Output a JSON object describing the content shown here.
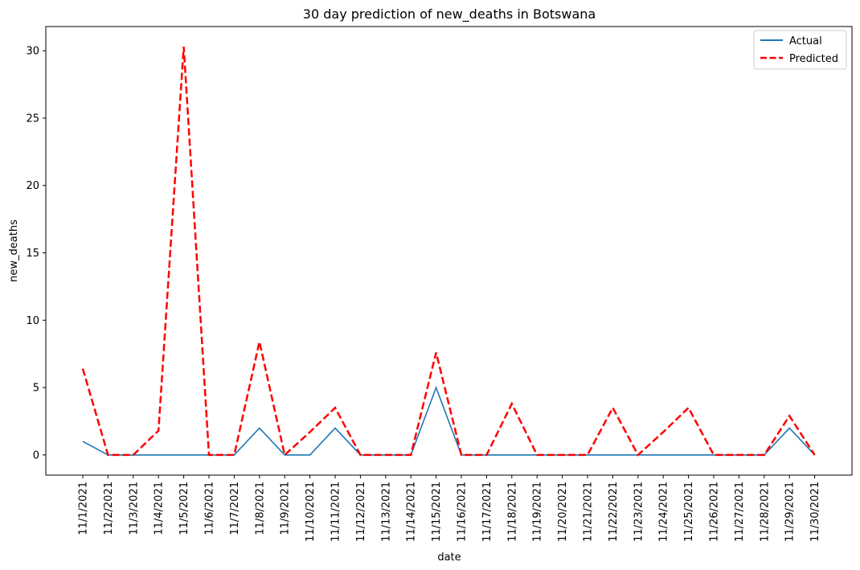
{
  "chart_data": {
    "type": "line",
    "title": "30 day prediction of new_deaths in Botswana",
    "xlabel": "date",
    "ylabel": "new_deaths",
    "x": [
      "11/1/2021",
      "11/2/2021",
      "11/3/2021",
      "11/4/2021",
      "11/5/2021",
      "11/6/2021",
      "11/7/2021",
      "11/8/2021",
      "11/9/2021",
      "11/10/2021",
      "11/11/2021",
      "11/12/2021",
      "11/13/2021",
      "11/14/2021",
      "11/15/2021",
      "11/16/2021",
      "11/17/2021",
      "11/18/2021",
      "11/19/2021",
      "11/20/2021",
      "11/21/2021",
      "11/22/2021",
      "11/23/2021",
      "11/24/2021",
      "11/25/2021",
      "11/26/2021",
      "11/27/2021",
      "11/28/2021",
      "11/29/2021",
      "11/30/2021"
    ],
    "ylim": [
      -1.5,
      31.8
    ],
    "yticks": [
      0,
      5,
      10,
      15,
      20,
      25,
      30
    ],
    "grid": false,
    "legend_position": "top-right",
    "series": [
      {
        "name": "Actual",
        "color": "#1f77b4",
        "style": "solid",
        "values": [
          1,
          0,
          0,
          0,
          0,
          0,
          0,
          2,
          0,
          0,
          2,
          0,
          0,
          0,
          5,
          0,
          0,
          0,
          0,
          0,
          0,
          0,
          0,
          0,
          0,
          0,
          0,
          0,
          2,
          0
        ]
      },
      {
        "name": "Predicted",
        "color": "#ff0000",
        "style": "dashed",
        "values": [
          6.4,
          0,
          0,
          1.8,
          30.3,
          0,
          0,
          8.4,
          0,
          1.7,
          3.5,
          0,
          0,
          0,
          7.6,
          0,
          0,
          3.8,
          0,
          0,
          0,
          3.5,
          0,
          1.7,
          3.5,
          0,
          0,
          0,
          2.9,
          0
        ]
      }
    ]
  }
}
